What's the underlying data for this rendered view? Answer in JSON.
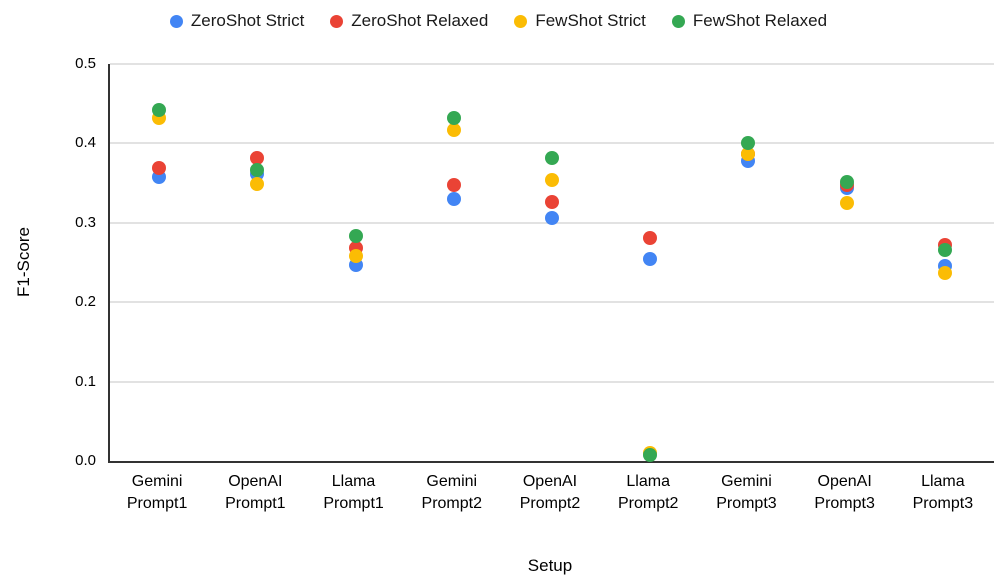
{
  "chart_data": {
    "type": "scatter",
    "title": "",
    "xlabel": "Setup",
    "ylabel": "F1-Score",
    "ylim": [
      0,
      0.5
    ],
    "grid": true,
    "legend_position": "top",
    "axis_color": "#333333",
    "grid_color": "#e2e2e2",
    "yticks": [
      {
        "label": "0.0",
        "value": 0.0
      },
      {
        "label": "0.1",
        "value": 0.1
      },
      {
        "label": "0.2",
        "value": 0.2
      },
      {
        "label": "0.3",
        "value": 0.3
      },
      {
        "label": "0.4",
        "value": 0.4
      },
      {
        "label": "0.5",
        "value": 0.5
      }
    ],
    "categories": [
      {
        "name": "Gemini Prompt1",
        "line1": "Gemini",
        "line2": "Prompt1"
      },
      {
        "name": "OpenAI Prompt1",
        "line1": "OpenAI",
        "line2": "Prompt1"
      },
      {
        "name": "Llama Prompt1",
        "line1": "Llama",
        "line2": "Prompt1"
      },
      {
        "name": "Gemini Prompt2",
        "line1": "Gemini",
        "line2": "Prompt2"
      },
      {
        "name": "OpenAI Prompt2",
        "line1": "OpenAI",
        "line2": "Prompt2"
      },
      {
        "name": "Llama Prompt2",
        "line1": "Llama",
        "line2": "Prompt2"
      },
      {
        "name": "Gemini Prompt3",
        "line1": "Gemini",
        "line2": "Prompt3"
      },
      {
        "name": "OpenAI Prompt3",
        "line1": "OpenAI",
        "line2": "Prompt3"
      },
      {
        "name": "Llama Prompt3",
        "line1": "Llama",
        "line2": "Prompt3"
      }
    ],
    "series": [
      {
        "name": "ZeroShot Strict",
        "color": "#4285F4",
        "values": [
          0.358,
          0.362,
          0.247,
          0.33,
          0.306,
          0.255,
          0.378,
          0.344,
          0.245
        ]
      },
      {
        "name": "ZeroShot Relaxed",
        "color": "#EA4335",
        "values": [
          0.369,
          0.382,
          0.268,
          0.348,
          0.326,
          0.281,
          0.387,
          0.347,
          0.272
        ]
      },
      {
        "name": "FewShot Strict",
        "color": "#FBBC04",
        "values": [
          0.432,
          0.349,
          0.258,
          0.417,
          0.354,
          0.01,
          0.387,
          0.325,
          0.237
        ]
      },
      {
        "name": "FewShot Relaxed",
        "color": "#34A853",
        "values": [
          0.442,
          0.366,
          0.284,
          0.432,
          0.381,
          0.007,
          0.401,
          0.351,
          0.266
        ]
      }
    ]
  }
}
